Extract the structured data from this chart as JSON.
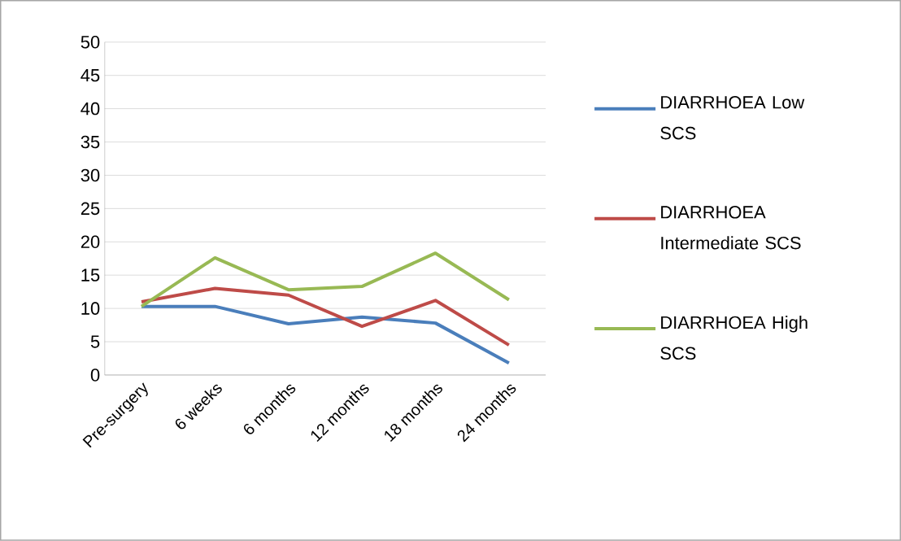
{
  "chart_data": {
    "type": "line",
    "categories": [
      "Pre-surgery",
      "6 weeks",
      "6 months",
      "12 months",
      "18 months",
      "24 months"
    ],
    "series": [
      {
        "name": "DIARRHOEA Low SCS",
        "color": "#4a7ebb",
        "values": [
          10.3,
          10.3,
          7.7,
          8.7,
          7.8,
          1.8
        ]
      },
      {
        "name": "DIARRHOEA Intermediate SCS",
        "color": "#be4b48",
        "values": [
          11.0,
          13.0,
          12.0,
          7.3,
          11.2,
          4.5
        ]
      },
      {
        "name": "DIARRHOEA High SCS",
        "color": "#98b954",
        "values": [
          10.3,
          17.6,
          12.8,
          13.3,
          18.3,
          11.3
        ]
      }
    ],
    "ylim": [
      0,
      50
    ],
    "yticks": [
      0,
      5,
      10,
      15,
      20,
      25,
      30,
      35,
      40,
      45,
      50
    ],
    "grid": "y",
    "legend": "right",
    "marker": "none"
  }
}
